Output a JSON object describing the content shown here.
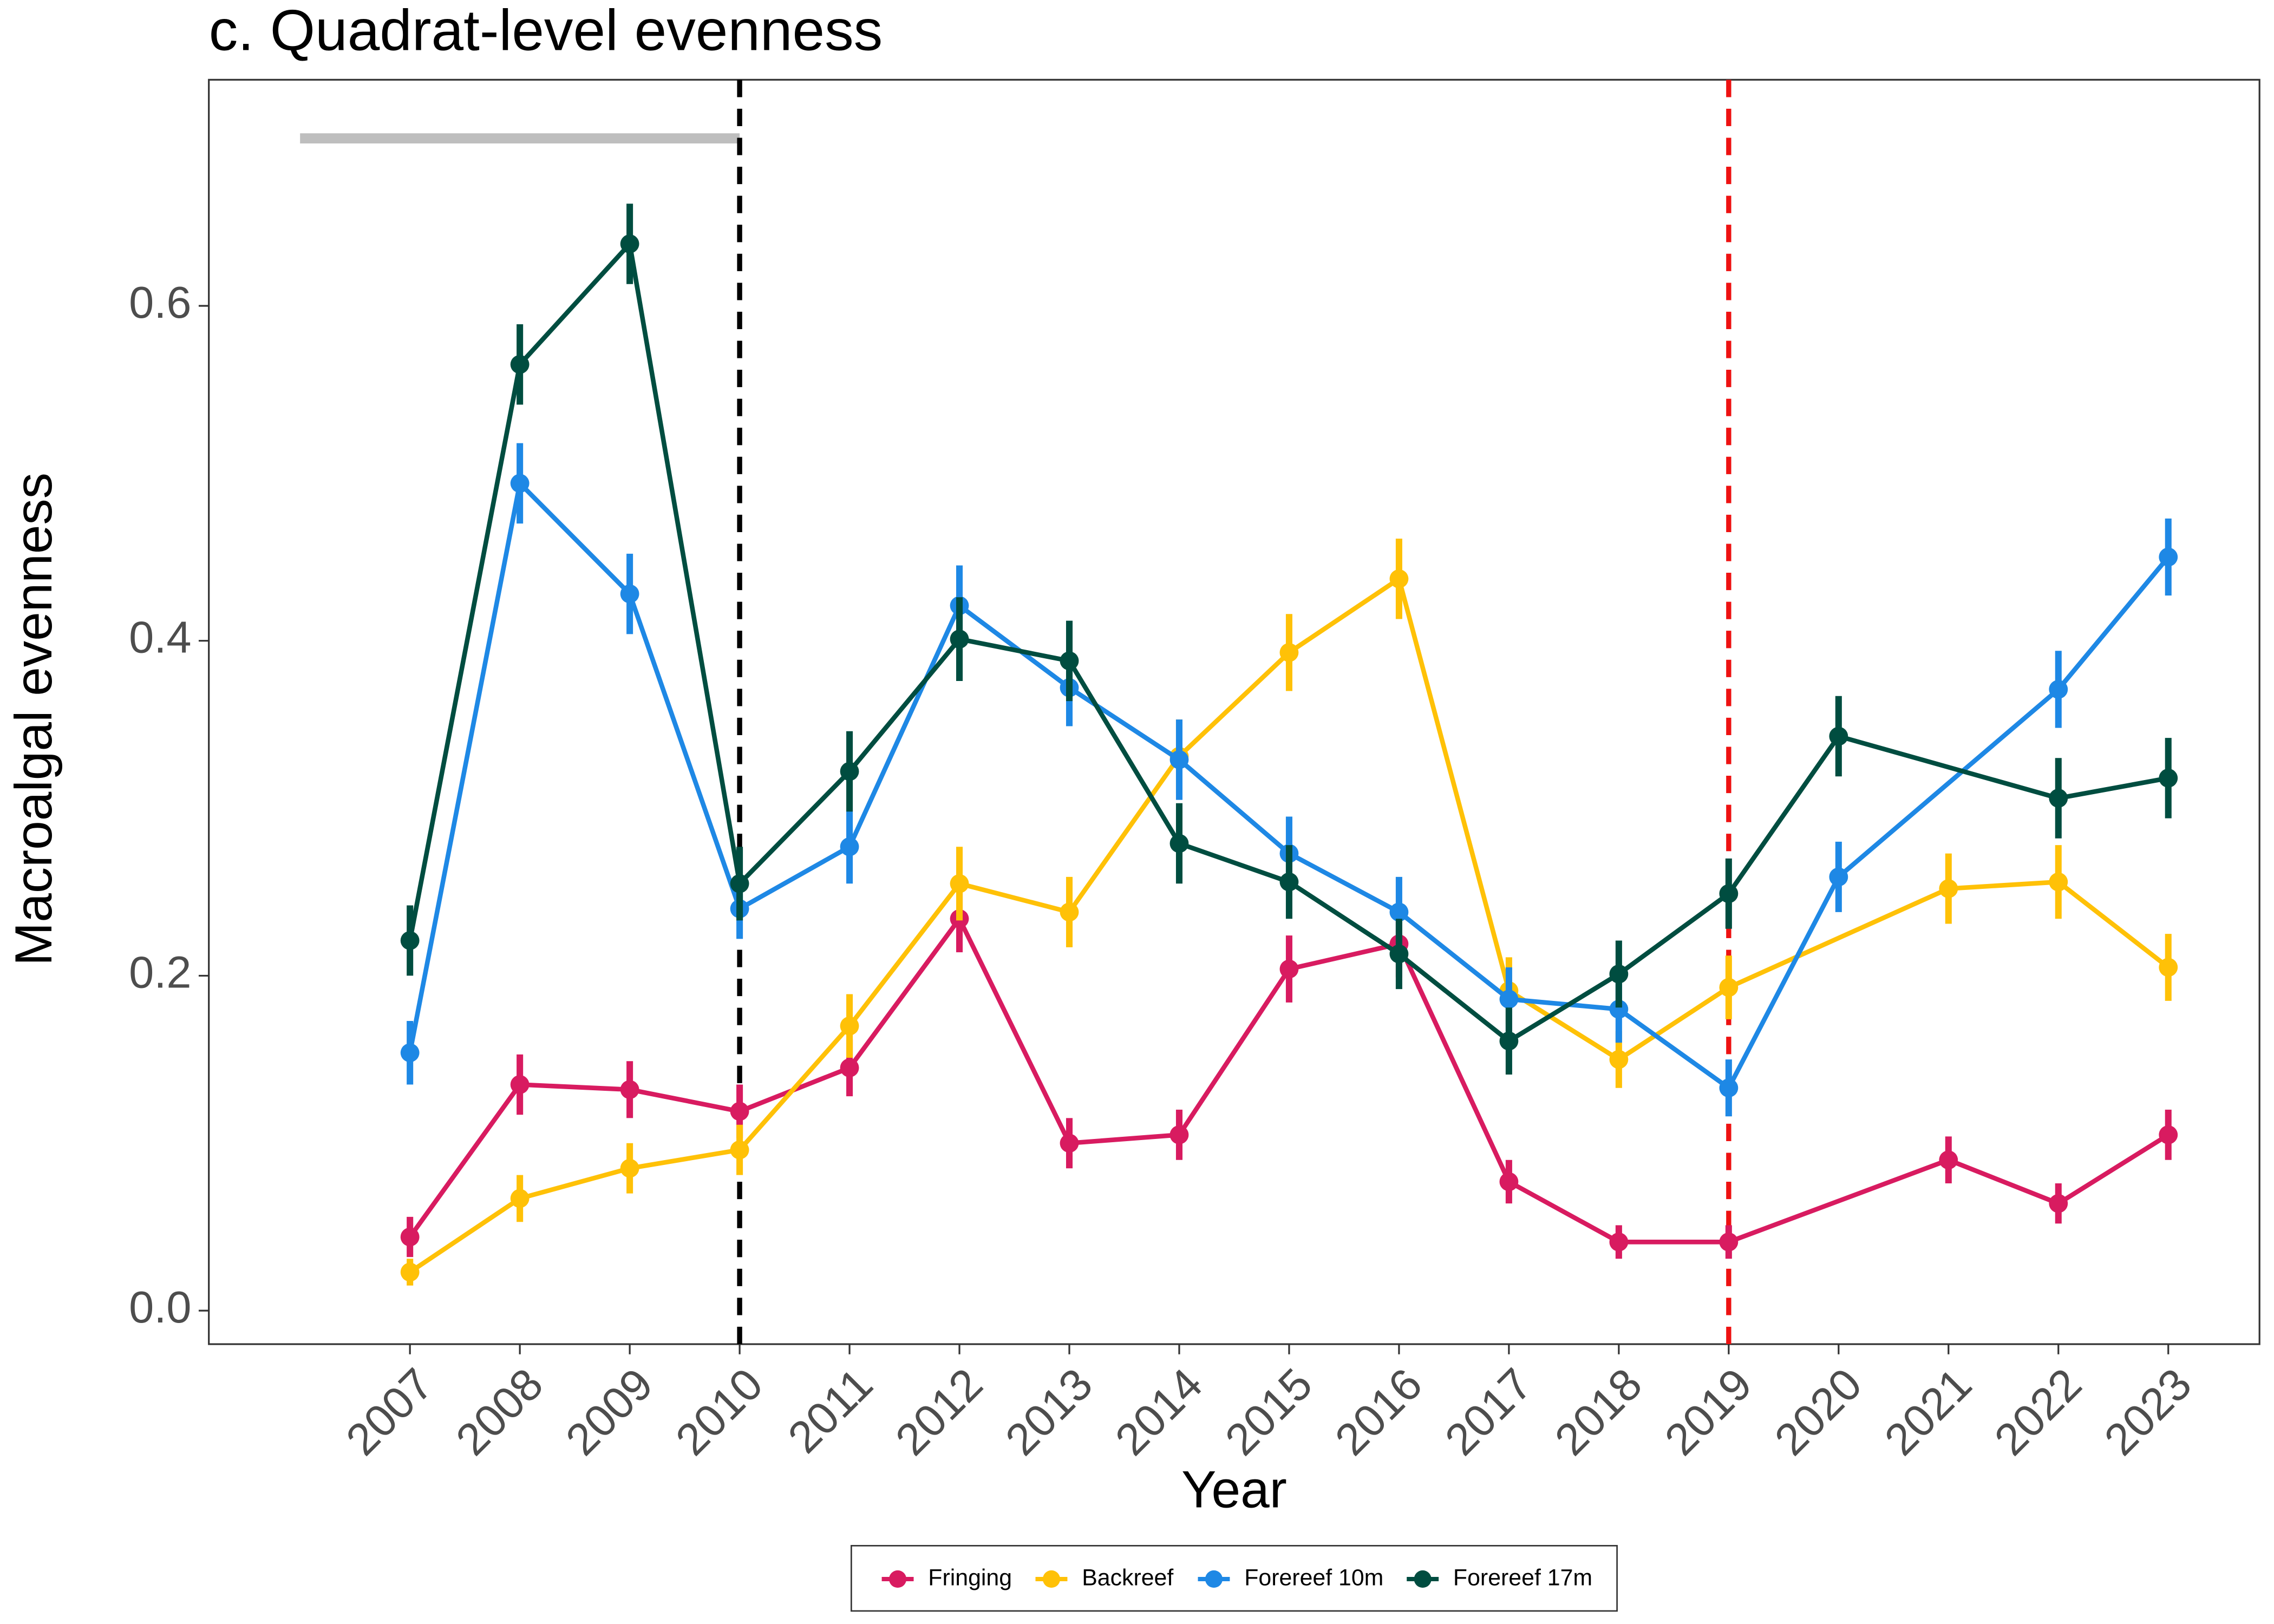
{
  "chart_data": {
    "type": "line",
    "title": "c. Quadrat-level evenness",
    "x_label": "Year",
    "y_label": "Macroalgal evenness",
    "xlim": [
      2005.17,
      2023.83
    ],
    "ylim": [
      -0.02,
      0.735
    ],
    "xticks": [
      2007,
      2008,
      2009,
      2010,
      2011,
      2012,
      2013,
      2014,
      2015,
      2016,
      2017,
      2018,
      2019,
      2020,
      2021,
      2022,
      2023
    ],
    "yticks": [
      {
        "value": 0,
        "label": "0.0"
      },
      0.2,
      0.4,
      0.6
    ],
    "grid": false,
    "legend": "bottom",
    "vlines": [
      {
        "x": 2010,
        "color": "#000000"
      },
      {
        "x": 2019,
        "color": "#ee1111"
      }
    ],
    "hbar": {
      "x": [
        2006,
        2010
      ],
      "y": 0.7,
      "color": "#bebebe"
    },
    "series": [
      {
        "name": "Fringing",
        "color": "#d81b60",
        "x": [
          2007,
          2008,
          2009,
          2010,
          2011,
          2012,
          2013,
          2014,
          2015,
          2016,
          2017,
          2018,
          2019,
          2021,
          2022,
          2023
        ],
        "values": [
          0.044,
          0.135,
          0.132,
          0.119,
          0.145,
          0.234,
          0.1,
          0.105,
          0.204,
          0.219,
          0.077,
          0.041,
          0.041,
          0.09,
          0.064,
          0.105
        ],
        "errors": [
          0.012,
          0.018,
          0.017,
          0.016,
          0.017,
          0.02,
          0.015,
          0.015,
          0.02,
          0.02,
          0.013,
          0.01,
          0.01,
          0.014,
          0.012,
          0.015
        ]
      },
      {
        "name": "Backreef",
        "color": "#ffc107",
        "x": [
          2007,
          2008,
          2009,
          2010,
          2011,
          2012,
          2013,
          2014,
          2015,
          2016,
          2017,
          2018,
          2019,
          2021,
          2022,
          2023
        ],
        "values": [
          0.023,
          0.067,
          0.085,
          0.096,
          0.17,
          0.255,
          0.238,
          0.331,
          0.393,
          0.437,
          0.191,
          0.15,
          0.193,
          0.252,
          0.256,
          0.205
        ],
        "errors": [
          0.008,
          0.014,
          0.015,
          0.015,
          0.019,
          0.022,
          0.021,
          0.022,
          0.023,
          0.024,
          0.02,
          0.017,
          0.019,
          0.021,
          0.022,
          0.02
        ]
      },
      {
        "name": "Forereef 10m",
        "color": "#1e88e5",
        "x": [
          2007,
          2008,
          2009,
          2010,
          2011,
          2012,
          2013,
          2014,
          2015,
          2016,
          2017,
          2018,
          2019,
          2020,
          2022,
          2023
        ],
        "values": [
          0.154,
          0.494,
          0.428,
          0.24,
          0.277,
          0.421,
          0.372,
          0.329,
          0.273,
          0.238,
          0.186,
          0.18,
          0.133,
          0.259,
          0.371,
          0.45
        ],
        "errors": [
          0.019,
          0.024,
          0.024,
          0.018,
          0.022,
          0.024,
          0.023,
          0.024,
          0.022,
          0.021,
          0.019,
          0.02,
          0.017,
          0.021,
          0.023,
          0.023
        ]
      },
      {
        "name": "Forereef 17m",
        "color": "#004d40",
        "x": [
          2007,
          2008,
          2009,
          2010,
          2011,
          2012,
          2013,
          2014,
          2015,
          2016,
          2017,
          2018,
          2019,
          2020,
          2022,
          2023
        ],
        "values": [
          0.221,
          0.565,
          0.637,
          0.255,
          0.322,
          0.401,
          0.388,
          0.279,
          0.256,
          0.213,
          0.161,
          0.201,
          0.249,
          0.343,
          0.306,
          0.318
        ],
        "errors": [
          0.021,
          0.024,
          0.024,
          0.022,
          0.024,
          0.025,
          0.024,
          0.024,
          0.022,
          0.021,
          0.02,
          0.02,
          0.021,
          0.024,
          0.024,
          0.024
        ]
      }
    ]
  }
}
